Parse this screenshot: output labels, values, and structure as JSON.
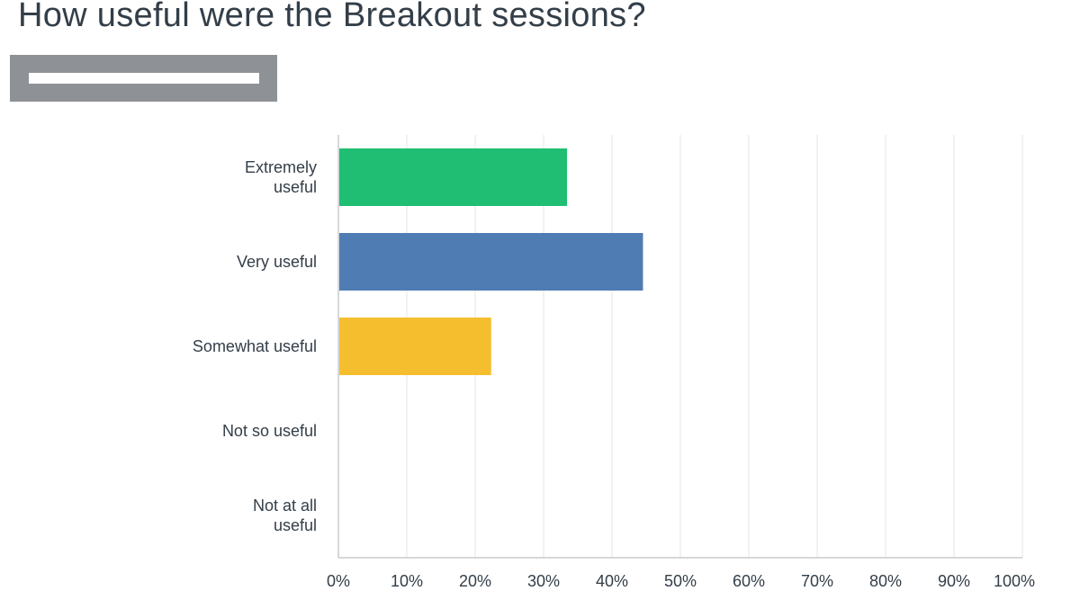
{
  "question": {
    "title": "How useful were the Breakout sessions?"
  },
  "chart_data": {
    "type": "bar",
    "orientation": "horizontal",
    "categories": [
      [
        "Extremely",
        "useful"
      ],
      [
        "Very useful"
      ],
      [
        "Somewhat useful"
      ],
      [
        "Not so useful"
      ],
      [
        "Not at all",
        "useful"
      ]
    ],
    "values": [
      33.3,
      44.4,
      22.2,
      0,
      0
    ],
    "colors": [
      "#1fbe72",
      "#507cb4",
      "#f5be2e",
      "#eb6e4b",
      "#8a5ca6"
    ],
    "xlim": [
      0,
      100
    ],
    "x_ticks": [
      "0%",
      "10%",
      "20%",
      "30%",
      "40%",
      "50%",
      "60%",
      "70%",
      "80%",
      "90%",
      "100%"
    ],
    "grid": true,
    "xlabel": "",
    "ylabel": ""
  }
}
